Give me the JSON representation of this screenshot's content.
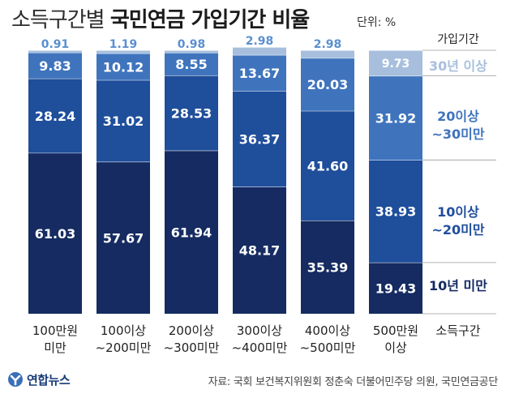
{
  "title_light": "소득구간별",
  "title_bold": "국민연금 가입기간 비율",
  "unit": "단위: %",
  "source": "자료: 국회 보건복지위원회 정춘숙 더불어민주당 의원, 국민연금공단",
  "logo_text": "연합뉴스",
  "chart_data": {
    "type": "bar",
    "stacked": true,
    "title": "소득구간별 국민연금 가입기간 비율",
    "ylabel": "",
    "xlabel": "소득구간",
    "legend_title": "가입기간",
    "categories": [
      [
        "100만원",
        "미만"
      ],
      [
        "100이상",
        "~200미만"
      ],
      [
        "200이상",
        "~300미만"
      ],
      [
        "300이상",
        "~400미만"
      ],
      [
        "400이상",
        "~500미만"
      ],
      [
        "500만원",
        "이상"
      ]
    ],
    "series": [
      {
        "name": [
          "10년 미만"
        ],
        "color": "#152b61",
        "values": [
          61.03,
          57.67,
          61.94,
          48.17,
          35.39,
          19.43
        ]
      },
      {
        "name": [
          "10이상",
          "~20미만"
        ],
        "color": "#1f4e9b",
        "values": [
          28.24,
          31.02,
          28.53,
          36.37,
          41.6,
          38.93
        ]
      },
      {
        "name": [
          "20이상",
          "~30미만"
        ],
        "color": "#3f74bd",
        "values": [
          9.83,
          10.12,
          8.55,
          13.67,
          20.03,
          31.92
        ]
      },
      {
        "name": [
          "30년 이상"
        ],
        "color": "#a7bfdd",
        "values": [
          0.91,
          1.19,
          0.98,
          2.98,
          2.98,
          9.73
        ]
      }
    ],
    "value_labels": [
      [
        "61.03",
        "57.67",
        "61.94",
        "48.17",
        "35.39",
        "19.43"
      ],
      [
        "28.24",
        "31.02",
        "28.53",
        "36.37",
        "41.60",
        "38.93"
      ],
      [
        "9.83",
        "10.12",
        "8.55",
        "13.67",
        "20.03",
        "31.92"
      ],
      [
        "0.91",
        "1.19",
        "0.98",
        "2.98",
        "2.98",
        "9.73"
      ]
    ],
    "ylim": [
      0,
      100
    ]
  }
}
